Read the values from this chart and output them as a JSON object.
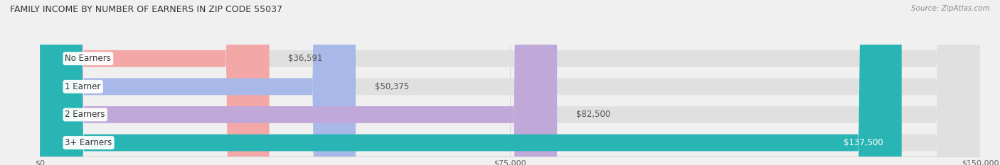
{
  "title": "FAMILY INCOME BY NUMBER OF EARNERS IN ZIP CODE 55037",
  "source": "Source: ZipAtlas.com",
  "categories": [
    "No Earners",
    "1 Earner",
    "2 Earners",
    "3+ Earners"
  ],
  "values": [
    36591,
    50375,
    82500,
    137500
  ],
  "bar_colors": [
    "#f4a7a7",
    "#a8b8e8",
    "#c0a8d8",
    "#2ab5b5"
  ],
  "xlim": [
    0,
    150000
  ],
  "xtick_labels": [
    "$0",
    "$75,000",
    "$150,000"
  ],
  "background_color": "#f0f0f0",
  "bar_bg_color": "#e0e0e0",
  "value_labels": [
    "$36,591",
    "$50,375",
    "$82,500",
    "$137,500"
  ],
  "title_fontsize": 9,
  "source_fontsize": 7.5,
  "label_fontsize": 8.5,
  "value_fontsize": 8.5,
  "tick_fontsize": 8
}
